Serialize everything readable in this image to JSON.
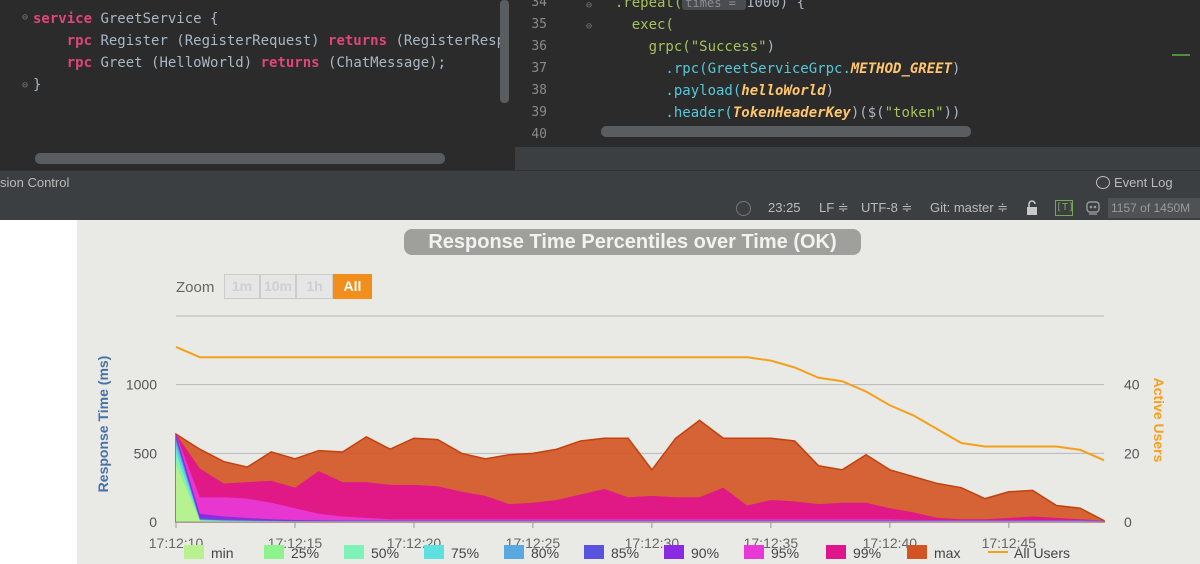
{
  "ide": {
    "left_code": [
      {
        "parts": [
          {
            "t": "service ",
            "c": "kw-pink"
          },
          {
            "t": "GreetService {",
            "c": "plain"
          }
        ]
      },
      {
        "parts": [
          {
            "t": "    rpc ",
            "c": "kw-pink"
          },
          {
            "t": "Register (RegisterRequest) ",
            "c": "plain"
          },
          {
            "t": "returns ",
            "c": "kw-pink"
          },
          {
            "t": "(RegisterResp",
            "c": "plain"
          }
        ]
      },
      {
        "parts": [
          {
            "t": "    rpc ",
            "c": "kw-pink"
          },
          {
            "t": "Greet (HelloWorld) ",
            "c": "plain"
          },
          {
            "t": "returns ",
            "c": "kw-pink"
          },
          {
            "t": "(ChatMessage);",
            "c": "plain"
          }
        ]
      },
      {
        "parts": [
          {
            "t": "}",
            "c": "plain"
          }
        ]
      }
    ],
    "line_numbers": [
      "34",
      "35",
      "36",
      "37",
      "38",
      "39",
      "40"
    ],
    "right_code": [
      {
        "parts": [
          {
            "t": "  .repeat(",
            "c": "fn-green"
          },
          {
            "t": "times = ",
            "c": "hint"
          },
          {
            "t": "1000) {",
            "c": "plain"
          }
        ]
      },
      {
        "parts": [
          {
            "t": "    exec(",
            "c": "fn-green"
          }
        ]
      },
      {
        "parts": [
          {
            "t": "      grpc(",
            "c": "fn-green"
          },
          {
            "t": "\"Success\"",
            "c": "str"
          },
          {
            "t": ")",
            "c": "plain"
          }
        ]
      },
      {
        "parts": [
          {
            "t": "        .rpc(",
            "c": "cyan"
          },
          {
            "t": "GreetServiceGrpc.",
            "c": "cyan"
          },
          {
            "t": "METHOD_GREET",
            "c": "italic-orange"
          },
          {
            "t": ")",
            "c": "plain"
          }
        ]
      },
      {
        "parts": [
          {
            "t": "        .payload(",
            "c": "cyan"
          },
          {
            "t": "helloWorld",
            "c": "italic-orange"
          },
          {
            "t": ")",
            "c": "plain"
          }
        ]
      },
      {
        "parts": [
          {
            "t": "        .header(",
            "c": "cyan"
          },
          {
            "t": "TokenHeaderKey",
            "c": "italic-orange"
          },
          {
            "t": ")($(",
            "c": "plain"
          },
          {
            "t": "\"token\"",
            "c": "str"
          },
          {
            "t": "))",
            "c": "plain"
          }
        ]
      },
      {
        "parts": [
          {
            "t": "",
            "c": "plain"
          }
        ]
      }
    ],
    "toolbar": {
      "version_control_label": "sion Control",
      "event_log_label": "Event Log"
    },
    "status": {
      "position": "23:25",
      "line_sep": "LF ≑",
      "encoding": "UTF-8 ≑",
      "git": "Git: master ≑",
      "t_label": "[T]",
      "memory": "1157 of 1450M"
    }
  },
  "chart_data": {
    "type": "area",
    "title": "Response Time Percentiles over Time (OK)",
    "ylabel": "Response Time (ms)",
    "y2label": "Active Users",
    "zoom_label": "Zoom",
    "zoom_options": [
      {
        "label": "1m",
        "active": false
      },
      {
        "label": "10m",
        "active": false
      },
      {
        "label": "1h",
        "active": false
      },
      {
        "label": "All",
        "active": true
      }
    ],
    "x_tick_labels": [
      "17:12:10",
      "17:12:15",
      "17:12:20",
      "17:12:25",
      "17:12:30",
      "17:12:35",
      "17:12:40",
      "17:12:45"
    ],
    "y_tick_labels": [
      "0",
      "500",
      "1000"
    ],
    "y2_tick_labels": [
      "0",
      "20",
      "40"
    ],
    "ylim": [
      0,
      1500
    ],
    "y2lim": [
      0,
      60
    ],
    "x_start_seconds": 0,
    "x_end_seconds": 39,
    "x": [
      0,
      1,
      2,
      3,
      4,
      5,
      6,
      7,
      8,
      9,
      10,
      11,
      12,
      13,
      14,
      15,
      16,
      17,
      18,
      19,
      20,
      21,
      22,
      23,
      24,
      25,
      26,
      27,
      28,
      29,
      30,
      31,
      32,
      33,
      34,
      35,
      36,
      37,
      38,
      39
    ],
    "series": [
      {
        "name": "max",
        "color": "#d35422",
        "values": [
          640,
          530,
          440,
          400,
          510,
          460,
          520,
          510,
          620,
          530,
          610,
          600,
          500,
          460,
          490,
          500,
          530,
          590,
          610,
          610,
          380,
          610,
          740,
          610,
          610,
          610,
          590,
          410,
          380,
          490,
          380,
          330,
          280,
          250,
          170,
          220,
          230,
          120,
          100,
          10
        ]
      },
      {
        "name": "99%",
        "color": "#e0158c",
        "values": [
          640,
          390,
          280,
          290,
          300,
          250,
          370,
          290,
          290,
          270,
          270,
          260,
          220,
          190,
          130,
          140,
          160,
          200,
          240,
          180,
          190,
          180,
          180,
          250,
          120,
          160,
          150,
          130,
          140,
          140,
          100,
          70,
          30,
          20,
          20,
          30,
          40,
          30,
          20,
          10
        ]
      },
      {
        "name": "95%",
        "color": "#e838d5",
        "values": [
          640,
          180,
          180,
          170,
          140,
          100,
          60,
          40,
          30,
          20,
          20,
          20,
          20,
          20,
          20,
          20,
          20,
          20,
          20,
          20,
          20,
          20,
          20,
          20,
          20,
          20,
          20,
          20,
          20,
          20,
          20,
          15,
          15,
          15,
          15,
          15,
          15,
          15,
          15,
          10
        ]
      },
      {
        "name": "90%",
        "color": "#8a2be2",
        "values": [
          640,
          60,
          40,
          30,
          20,
          15,
          12,
          10,
          10,
          10,
          10,
          10,
          10,
          10,
          10,
          10,
          10,
          10,
          10,
          10,
          10,
          10,
          10,
          10,
          10,
          10,
          10,
          10,
          10,
          10,
          10,
          10,
          10,
          10,
          10,
          10,
          10,
          10,
          10,
          8
        ]
      },
      {
        "name": "85%",
        "color": "#5a53e0",
        "values": [
          620,
          30,
          20,
          15,
          10,
          8,
          8,
          8,
          8,
          8,
          8,
          8,
          8,
          8,
          8,
          8,
          8,
          8,
          8,
          8,
          8,
          8,
          8,
          8,
          8,
          8,
          8,
          8,
          8,
          8,
          8,
          8,
          8,
          8,
          8,
          8,
          8,
          8,
          8,
          6
        ]
      },
      {
        "name": "80%",
        "color": "#5ba7e0",
        "values": [
          600,
          20,
          12,
          10,
          8,
          6,
          6,
          6,
          6,
          6,
          6,
          6,
          6,
          6,
          6,
          6,
          6,
          6,
          6,
          6,
          6,
          6,
          6,
          6,
          6,
          6,
          6,
          6,
          6,
          6,
          6,
          6,
          6,
          6,
          6,
          6,
          6,
          6,
          6,
          5
        ]
      },
      {
        "name": "75%",
        "color": "#5ee0e0",
        "values": [
          560,
          15,
          10,
          8,
          6,
          5,
          5,
          5,
          5,
          5,
          5,
          5,
          5,
          5,
          5,
          5,
          5,
          5,
          5,
          5,
          5,
          5,
          5,
          5,
          5,
          5,
          5,
          5,
          5,
          5,
          5,
          5,
          5,
          5,
          5,
          5,
          5,
          5,
          5,
          4
        ]
      },
      {
        "name": "50%",
        "color": "#7ef2b8",
        "values": [
          500,
          12,
          8,
          6,
          5,
          4,
          4,
          4,
          4,
          4,
          4,
          4,
          4,
          4,
          4,
          4,
          4,
          4,
          4,
          4,
          4,
          4,
          4,
          4,
          4,
          4,
          4,
          4,
          4,
          4,
          4,
          4,
          4,
          4,
          4,
          4,
          4,
          4,
          4,
          3
        ]
      },
      {
        "name": "25%",
        "color": "#8ef28e",
        "values": [
          450,
          10,
          6,
          5,
          4,
          3,
          3,
          3,
          3,
          3,
          3,
          3,
          3,
          3,
          3,
          3,
          3,
          3,
          3,
          3,
          3,
          3,
          3,
          3,
          3,
          3,
          3,
          3,
          3,
          3,
          3,
          3,
          3,
          3,
          3,
          3,
          3,
          3,
          3,
          2
        ]
      },
      {
        "name": "min",
        "color": "#b8f290",
        "values": [
          420,
          8,
          5,
          4,
          3,
          2,
          2,
          2,
          2,
          2,
          2,
          2,
          2,
          2,
          2,
          2,
          2,
          2,
          2,
          2,
          2,
          2,
          2,
          2,
          2,
          2,
          2,
          2,
          2,
          2,
          2,
          2,
          2,
          2,
          2,
          2,
          2,
          2,
          2,
          1
        ]
      }
    ],
    "users_series": {
      "name": "All Users",
      "color": "#f5a01a",
      "x": [
        0,
        1,
        2,
        3,
        4,
        5,
        6,
        7,
        8,
        9,
        10,
        11,
        12,
        13,
        14,
        15,
        16,
        17,
        18,
        19,
        20,
        21,
        22,
        23,
        24,
        25,
        26,
        27,
        28,
        29,
        30,
        31,
        32,
        33,
        34,
        35,
        36,
        37,
        38,
        39
      ],
      "values": [
        51,
        48,
        48,
        48,
        48,
        48,
        48,
        48,
        48,
        48,
        48,
        48,
        48,
        48,
        48,
        48,
        48,
        48,
        48,
        48,
        48,
        48,
        48,
        48,
        48,
        47,
        45,
        42,
        41,
        38,
        34,
        31,
        27,
        23,
        22,
        22,
        22,
        22,
        21,
        18
      ]
    },
    "legend": [
      {
        "name": "min",
        "color": "#b8f290"
      },
      {
        "name": "25%",
        "color": "#8ef28e"
      },
      {
        "name": "50%",
        "color": "#7ef2b8"
      },
      {
        "name": "75%",
        "color": "#5ee0e0"
      },
      {
        "name": "80%",
        "color": "#5ba7e0"
      },
      {
        "name": "85%",
        "color": "#5a53e0"
      },
      {
        "name": "90%",
        "color": "#8a2be2"
      },
      {
        "name": "95%",
        "color": "#e838d5"
      },
      {
        "name": "99%",
        "color": "#e0158c"
      },
      {
        "name": "max",
        "color": "#d35422"
      },
      {
        "name": "All Users",
        "color": "#f5a01a",
        "line": true
      }
    ],
    "grid": true,
    "legend_position": "bottom"
  }
}
